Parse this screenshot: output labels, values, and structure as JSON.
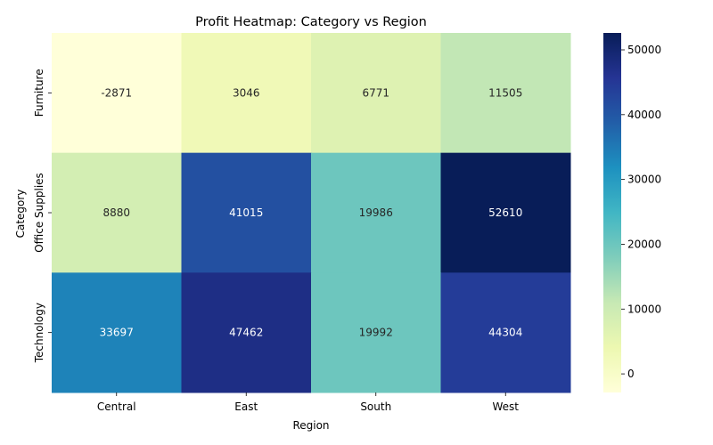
{
  "chart_data": {
    "type": "heatmap",
    "title": "Profit Heatmap: Category vs Region",
    "xlabel": "Region",
    "ylabel": "Category",
    "x_categories": [
      "Central",
      "East",
      "South",
      "West"
    ],
    "y_categories": [
      "Furniture",
      "Office Supplies",
      "Technology"
    ],
    "values": [
      [
        -2871,
        3046,
        6771,
        11505
      ],
      [
        8880,
        41015,
        19986,
        52610
      ],
      [
        33697,
        47462,
        19992,
        44304
      ]
    ],
    "colorbar": {
      "range": [
        -2871,
        52610
      ],
      "ticks": [
        0,
        10000,
        20000,
        30000,
        40000,
        50000
      ],
      "colormap": "YlGnBu"
    }
  }
}
